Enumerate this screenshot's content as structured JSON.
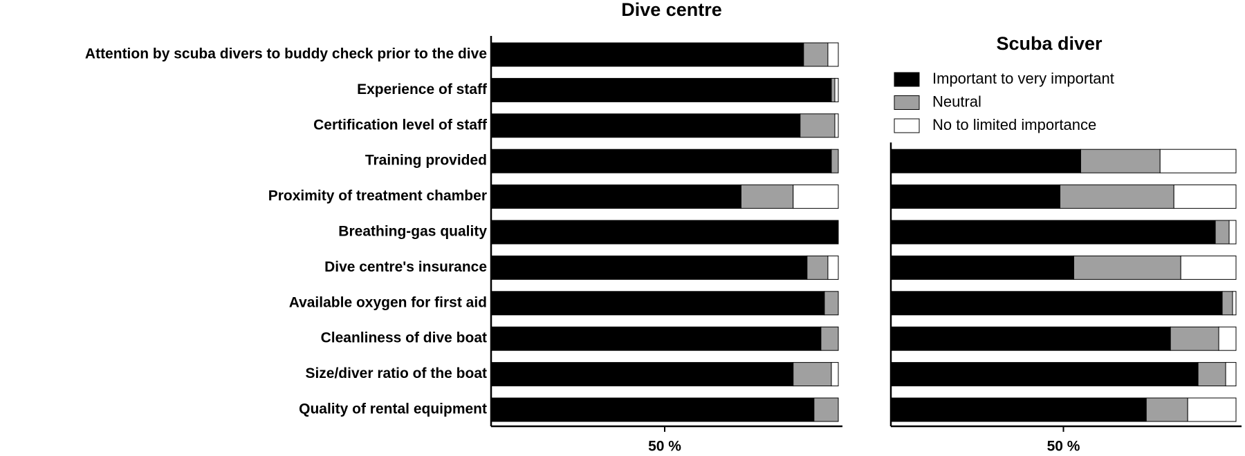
{
  "chart_data": [
    {
      "type": "stacked-barh",
      "title": "Dive centre",
      "categories": [
        "Attention by scuba divers to buddy check prior to the dive",
        "Experience of staff",
        "Certification level of staff",
        "Training provided",
        "Proximity of treatment chamber",
        "Breathing-gas quality",
        "Dive centre's insurance",
        "Available oxygen for first aid",
        "Cleanliness of dive boat",
        "Size/diver ratio of the boat",
        "Quality of rental equipment"
      ],
      "series": [
        {
          "color": "#000000",
          "values": [
            90,
            98,
            89,
            98,
            72,
            100,
            91,
            96,
            95,
            87,
            93
          ]
        },
        {
          "color": "#a0a0a0",
          "values": [
            7,
            1,
            10,
            2,
            15,
            0,
            6,
            4,
            5,
            11,
            7
          ]
        },
        {
          "color": "#ffffff",
          "values": [
            3,
            1,
            1,
            0,
            13,
            0,
            3,
            0,
            0,
            2,
            0
          ]
        }
      ],
      "xlim": [
        0,
        100
      ],
      "xticks": [
        {
          "value": 50,
          "label": "50 %"
        }
      ]
    },
    {
      "type": "stacked-barh",
      "title": "Scuba diver",
      "series": [
        {
          "name": "Important to very important",
          "color": "#000000",
          "values": [
            55,
            49,
            94,
            53,
            96,
            81,
            89,
            74
          ]
        },
        {
          "name": "Neutral",
          "color": "#a0a0a0",
          "values": [
            23,
            33,
            4,
            31,
            3,
            14,
            8,
            12
          ]
        },
        {
          "name": "No to limited importance",
          "color": "#ffffff",
          "values": [
            22,
            18,
            2,
            16,
            1,
            5,
            3,
            14
          ]
        }
      ],
      "xlim": [
        0,
        100
      ],
      "xticks": [
        {
          "value": 50,
          "label": "50 %"
        }
      ]
    }
  ]
}
